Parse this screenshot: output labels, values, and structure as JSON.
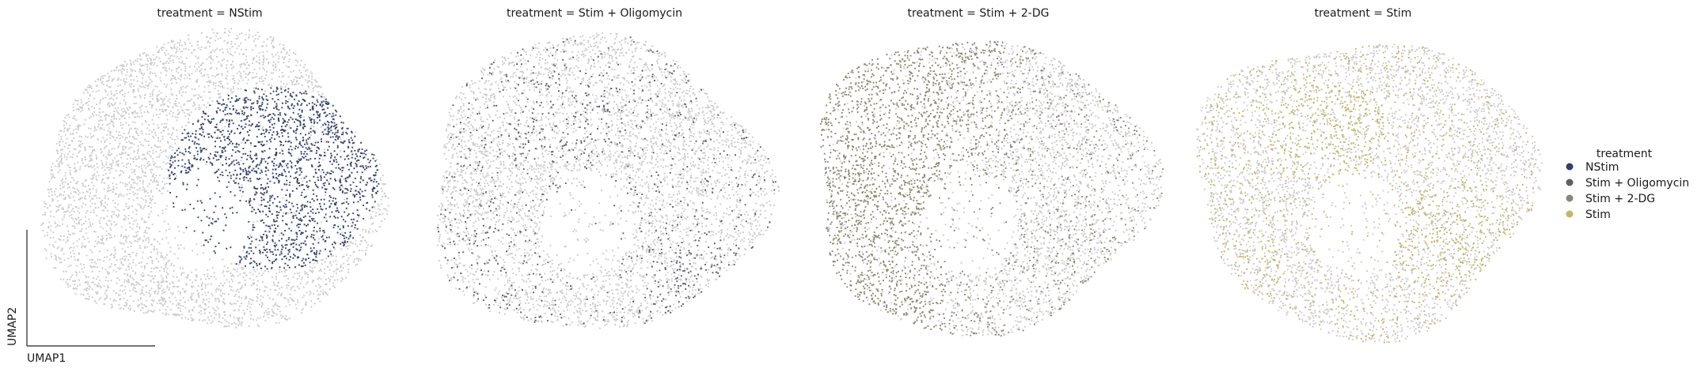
{
  "chart_data": {
    "type": "scatter",
    "embedding": "umap",
    "xlabel": "UMAP1",
    "ylabel": "UMAP2",
    "background_color": "#cccccc",
    "panels": [
      {
        "title": "treatment = NStim",
        "highlight": "NStim",
        "color": "#33406b",
        "pattern": "right-blob"
      },
      {
        "title": "treatment = Stim + Oligomycin",
        "highlight": "Stim + Oligomycin",
        "color": "#5e5e66",
        "pattern": "sparse-scatter"
      },
      {
        "title": "treatment = Stim + 2-DG",
        "highlight": "Stim + 2-DG",
        "color": "#8c8770",
        "pattern": "left-heavy"
      },
      {
        "title": "treatment = Stim",
        "highlight": "Stim",
        "color": "#c6b46a",
        "pattern": "scattered-clusters"
      }
    ],
    "legend": {
      "title": "treatment",
      "placement": "right",
      "entries": [
        {
          "label": "NStim",
          "color": "#33406b"
        },
        {
          "label": "Stim + Oligomycin",
          "color": "#5e5e66"
        },
        {
          "label": "Stim + 2-DG",
          "color": "#8c8770"
        },
        {
          "label": "Stim",
          "color": "#c6b46a"
        }
      ]
    }
  }
}
